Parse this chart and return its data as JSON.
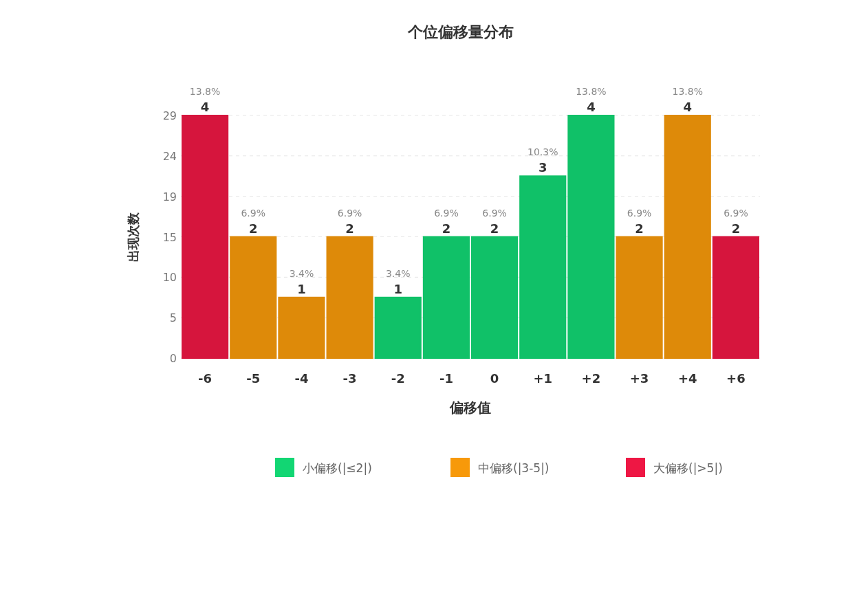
{
  "chart_data": {
    "type": "bar",
    "title": "个位偏移量分布",
    "xlabel": "偏移值",
    "ylabel": "出现次数",
    "categories": [
      "-6",
      "-5",
      "-4",
      "-3",
      "-2",
      "-1",
      "0",
      "+1",
      "+2",
      "+3",
      "+4",
      "+6"
    ],
    "series": [
      {
        "name": "小偏移(|≤2|)",
        "color": "#12d673",
        "values": [
          null,
          null,
          null,
          null,
          7.25,
          14.5,
          14.5,
          21.75,
          29,
          null,
          null,
          null
        ]
      },
      {
        "name": "中偏移(|3-5|)",
        "color": "#f7990a",
        "values": [
          null,
          14.5,
          7.25,
          14.5,
          null,
          null,
          null,
          null,
          null,
          14.5,
          29,
          null
        ]
      },
      {
        "name": "大偏移(|>5|)",
        "color": "#ee1744",
        "values": [
          29,
          null,
          null,
          null,
          null,
          null,
          null,
          null,
          null,
          null,
          null,
          14.5
        ]
      }
    ],
    "ylim": [
      0,
      29
    ],
    "yticks": [
      0,
      {
        "value": 4.83,
        "label": "5"
      },
      {
        "value": 9.67,
        "label": "10"
      },
      {
        "value": 14.5,
        "label": "15"
      },
      {
        "value": 19.33,
        "label": "19"
      },
      {
        "value": 24.17,
        "label": "24"
      },
      29
    ],
    "grid": "y",
    "legend": "bottom",
    "annotations": [
      {
        "text": "13.8%",
        "x": "-6",
        "y": 29
      },
      {
        "text": "4",
        "x": "-6",
        "y": 29
      },
      {
        "text": "6.9%",
        "x": "-5",
        "y": 14.5
      },
      {
        "text": "2",
        "x": "-5",
        "y": 14.5
      },
      {
        "text": "3.4%",
        "x": "-4",
        "y": 7.25
      },
      {
        "text": "1",
        "x": "-4",
        "y": 7.25
      },
      {
        "text": "6.9%",
        "x": "-3",
        "y": 14.5
      },
      {
        "text": "2",
        "x": "-3",
        "y": 14.5
      },
      {
        "text": "3.4%",
        "x": "-2",
        "y": 7.25
      },
      {
        "text": "1",
        "x": "-2",
        "y": 7.25
      },
      {
        "text": "6.9%",
        "x": "-1",
        "y": 14.5
      },
      {
        "text": "2",
        "x": "-1",
        "y": 14.5
      },
      {
        "text": "6.9%",
        "x": "0",
        "y": 14.5
      },
      {
        "text": "2",
        "x": "0",
        "y": 14.5
      },
      {
        "text": "10.3%",
        "x": "+1",
        "y": 21.75
      },
      {
        "text": "3",
        "x": "+1",
        "y": 21.75
      },
      {
        "text": "13.8%",
        "x": "+2",
        "y": 29
      },
      {
        "text": "4",
        "x": "+2",
        "y": 29
      },
      {
        "text": "6.9%",
        "x": "+3",
        "y": 14.5
      },
      {
        "text": "2",
        "x": "+3",
        "y": 14.5
      },
      {
        "text": "13.8%",
        "x": "+4",
        "y": 29
      },
      {
        "text": "4",
        "x": "+4",
        "y": 29
      },
      {
        "text": "6.9%",
        "x": "+6",
        "y": 14.5
      },
      {
        "text": "2",
        "x": "+6",
        "y": 14.5
      }
    ]
  }
}
